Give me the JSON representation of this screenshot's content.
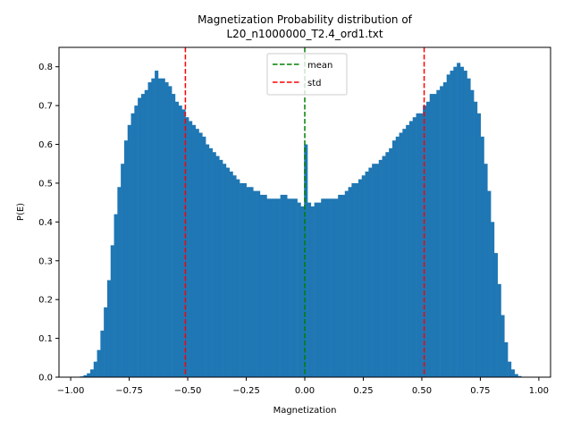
{
  "chart_data": {
    "type": "bar",
    "title_lines": [
      "Magnetization Probability distribution of",
      "L20_n1000000_T2.4_ord1.txt"
    ],
    "xlabel": "Magnetization",
    "ylabel": "P(E)",
    "xlim": [
      -1.05,
      1.05
    ],
    "ylim": [
      0,
      0.85
    ],
    "xticks": [
      -1.0,
      -0.75,
      -0.5,
      -0.25,
      0.0,
      0.25,
      0.5,
      0.75,
      1.0
    ],
    "xtick_labels": [
      "−1.00",
      "−0.75",
      "−0.50",
      "−0.25",
      "0.00",
      "0.25",
      "0.50",
      "0.75",
      "1.00"
    ],
    "yticks": [
      0.0,
      0.1,
      0.2,
      0.3,
      0.4,
      0.5,
      0.6,
      0.7,
      0.8
    ],
    "ytick_labels": [
      "0.0",
      "0.1",
      "0.2",
      "0.3",
      "0.4",
      "0.5",
      "0.6",
      "0.7",
      "0.8"
    ],
    "bar_color": "#1f77b4",
    "bin_edges_start": -0.96,
    "bin_width": 0.0145,
    "bin_values": [
      0.002,
      0.005,
      0.01,
      0.02,
      0.04,
      0.07,
      0.12,
      0.18,
      0.25,
      0.34,
      0.42,
      0.49,
      0.55,
      0.61,
      0.65,
      0.68,
      0.7,
      0.72,
      0.73,
      0.74,
      0.76,
      0.77,
      0.79,
      0.77,
      0.77,
      0.76,
      0.75,
      0.73,
      0.71,
      0.7,
      0.69,
      0.67,
      0.66,
      0.65,
      0.64,
      0.63,
      0.62,
      0.6,
      0.59,
      0.58,
      0.57,
      0.56,
      0.55,
      0.54,
      0.53,
      0.52,
      0.51,
      0.5,
      0.5,
      0.49,
      0.49,
      0.48,
      0.48,
      0.47,
      0.47,
      0.46,
      0.46,
      0.46,
      0.46,
      0.47,
      0.47,
      0.46,
      0.46,
      0.46,
      0.45,
      0.44,
      0.6,
      0.45,
      0.44,
      0.45,
      0.45,
      0.46,
      0.46,
      0.46,
      0.46,
      0.46,
      0.47,
      0.47,
      0.48,
      0.49,
      0.5,
      0.5,
      0.51,
      0.52,
      0.53,
      0.54,
      0.55,
      0.55,
      0.56,
      0.57,
      0.58,
      0.59,
      0.61,
      0.62,
      0.63,
      0.64,
      0.65,
      0.66,
      0.67,
      0.68,
      0.68,
      0.7,
      0.71,
      0.73,
      0.73,
      0.74,
      0.75,
      0.76,
      0.78,
      0.79,
      0.8,
      0.81,
      0.8,
      0.79,
      0.77,
      0.74,
      0.71,
      0.68,
      0.62,
      0.55,
      0.48,
      0.4,
      0.32,
      0.24,
      0.16,
      0.09,
      0.04,
      0.02,
      0.008,
      0.003
    ],
    "vlines": [
      {
        "name": "mean",
        "x": 0.0,
        "color": "#008000"
      },
      {
        "name": "std",
        "x": -0.51,
        "color": "#ff0000"
      },
      {
        "name": "std",
        "x": 0.51,
        "color": "#ff0000"
      }
    ],
    "legend": {
      "placement": "upper-center",
      "entries": [
        {
          "label": "mean",
          "color": "#008000"
        },
        {
          "label": "std",
          "color": "#ff0000"
        }
      ]
    },
    "grid": false
  }
}
